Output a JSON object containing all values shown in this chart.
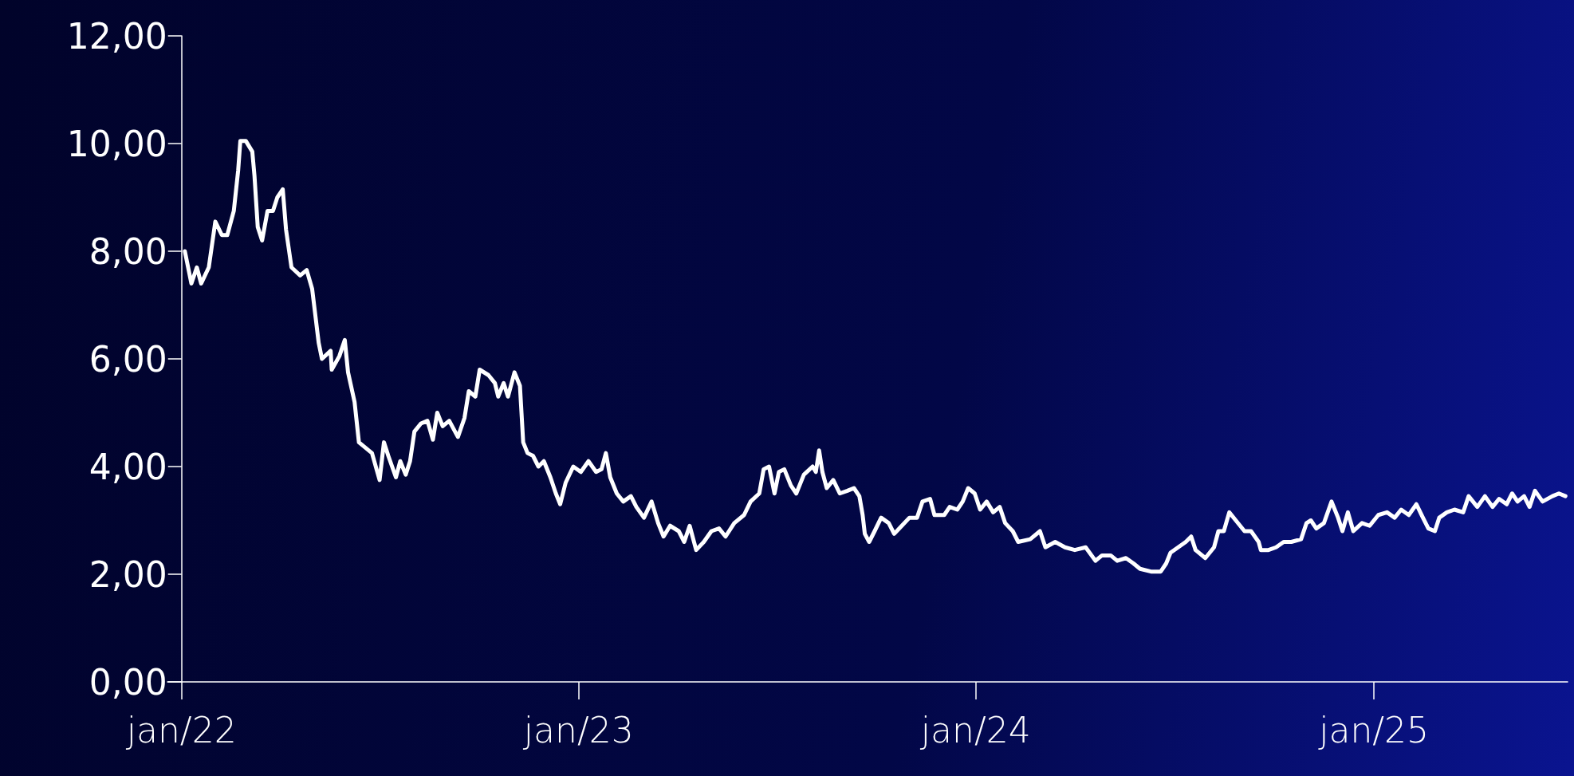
{
  "chart_data": {
    "type": "line",
    "x": [
      "2022-01-04",
      "2022-01-10",
      "2022-01-15",
      "2022-01-19",
      "2022-01-26",
      "2022-02-01",
      "2022-02-07",
      "2022-02-12",
      "2022-02-18",
      "2022-02-22",
      "2022-02-24",
      "2022-03-01",
      "2022-03-07",
      "2022-03-09",
      "2022-03-12",
      "2022-03-16",
      "2022-03-21",
      "2022-03-26",
      "2022-03-30",
      "2022-04-04",
      "2022-04-07",
      "2022-04-12",
      "2022-04-20",
      "2022-04-26",
      "2022-05-01",
      "2022-05-04",
      "2022-05-07",
      "2022-05-10",
      "2022-05-18",
      "2022-05-19",
      "2022-05-26",
      "2022-05-31",
      "2022-06-03",
      "2022-06-09",
      "2022-06-13",
      "2022-06-19",
      "2022-06-25",
      "2022-07-02",
      "2022-07-06",
      "2022-07-10",
      "2022-07-17",
      "2022-07-21",
      "2022-07-26",
      "2022-07-30",
      "2022-08-03",
      "2022-08-09",
      "2022-08-15",
      "2022-08-20",
      "2022-08-24",
      "2022-08-29",
      "2022-09-04",
      "2022-09-12",
      "2022-09-18",
      "2022-09-22",
      "2022-09-28",
      "2022-10-02",
      "2022-10-10",
      "2022-10-16",
      "2022-10-19",
      "2022-10-24",
      "2022-10-28",
      "2022-11-03",
      "2022-11-08",
      "2022-11-11",
      "2022-11-15",
      "2022-11-20",
      "2022-11-25",
      "2022-11-30",
      "2022-12-06",
      "2022-12-11",
      "2022-12-15",
      "2022-12-20",
      "2022-12-27",
      "2023-01-03",
      "2023-01-10",
      "2023-01-17",
      "2023-01-22",
      "2023-01-26",
      "2023-01-30",
      "2023-02-05",
      "2023-02-11",
      "2023-02-18",
      "2023-02-23",
      "2023-03-02",
      "2023-03-09",
      "2023-03-15",
      "2023-03-20",
      "2023-03-26",
      "2023-04-03",
      "2023-04-08",
      "2023-04-13",
      "2023-04-19",
      "2023-04-26",
      "2023-05-03",
      "2023-05-10",
      "2023-05-16",
      "2023-05-24",
      "2023-06-02",
      "2023-06-08",
      "2023-06-16",
      "2023-06-20",
      "2023-06-25",
      "2023-06-30",
      "2023-07-04",
      "2023-07-09",
      "2023-07-15",
      "2023-07-20",
      "2023-07-27",
      "2023-08-04",
      "2023-08-07",
      "2023-08-10",
      "2023-08-13",
      "2023-08-17",
      "2023-08-23",
      "2023-08-29",
      "2023-09-05",
      "2023-09-11",
      "2023-09-16",
      "2023-09-19",
      "2023-09-21",
      "2023-09-25",
      "2023-09-30",
      "2023-10-06",
      "2023-10-13",
      "2023-10-18",
      "2023-10-25",
      "2023-11-01",
      "2023-11-08",
      "2023-11-13",
      "2023-11-20",
      "2023-11-24",
      "2023-12-03",
      "2023-12-08",
      "2023-12-15",
      "2023-12-20",
      "2023-12-25",
      "2023-12-31",
      "2024-01-05",
      "2024-01-11",
      "2024-01-17",
      "2024-01-23",
      "2024-01-28",
      "2024-02-04",
      "2024-02-09",
      "2024-02-20",
      "2024-02-29",
      "2024-03-05",
      "2024-03-14",
      "2024-03-23",
      "2024-04-01",
      "2024-04-11",
      "2024-04-20",
      "2024-04-26",
      "2024-05-04",
      "2024-05-10",
      "2024-05-18",
      "2024-05-25",
      "2024-05-31",
      "2024-06-10",
      "2024-06-19",
      "2024-06-24",
      "2024-06-28",
      "2024-07-05",
      "2024-07-12",
      "2024-07-17",
      "2024-07-21",
      "2024-07-30",
      "2024-08-07",
      "2024-08-11",
      "2024-08-16",
      "2024-08-21",
      "2024-08-27",
      "2024-09-04",
      "2024-09-10",
      "2024-09-17",
      "2024-09-19",
      "2024-09-26",
      "2024-10-03",
      "2024-10-10",
      "2024-10-17",
      "2024-10-26",
      "2024-10-31",
      "2024-11-04",
      "2024-11-09",
      "2024-11-16",
      "2024-11-23",
      "2024-11-29",
      "2024-12-03",
      "2024-12-08",
      "2024-12-13",
      "2024-12-21",
      "2024-12-28",
      "2025-01-05",
      "2025-01-13",
      "2025-01-20",
      "2025-01-26",
      "2025-02-02",
      "2025-02-09",
      "2025-02-15",
      "2025-02-20",
      "2025-02-26",
      "2025-03-02",
      "2025-03-09",
      "2025-03-16",
      "2025-03-24",
      "2025-03-29",
      "2025-04-06",
      "2025-04-13",
      "2025-04-20",
      "2025-04-26",
      "2025-05-03",
      "2025-05-08",
      "2025-05-13",
      "2025-05-19",
      "2025-05-24",
      "2025-05-29",
      "2025-06-05",
      "2025-06-14",
      "2025-06-20",
      "2025-06-26"
    ],
    "series": [
      {
        "color": "#ffffff",
        "values": [
          8.0,
          7.4,
          7.7,
          7.4,
          7.7,
          8.55,
          8.3,
          8.3,
          8.75,
          9.5,
          10.05,
          10.05,
          9.85,
          9.4,
          8.45,
          8.2,
          8.75,
          8.75,
          9.0,
          9.15,
          8.4,
          7.7,
          7.55,
          7.65,
          7.3,
          6.8,
          6.3,
          6.0,
          6.15,
          5.8,
          6.05,
          6.35,
          5.75,
          5.2,
          4.45,
          4.35,
          4.25,
          3.75,
          4.45,
          4.2,
          3.8,
          4.1,
          3.85,
          4.1,
          4.65,
          4.8,
          4.85,
          4.5,
          5.0,
          4.75,
          4.85,
          4.55,
          4.9,
          5.4,
          5.3,
          5.8,
          5.7,
          5.55,
          5.3,
          5.55,
          5.3,
          5.75,
          5.5,
          4.45,
          4.25,
          4.2,
          4.0,
          4.1,
          3.8,
          3.5,
          3.3,
          3.7,
          4.0,
          3.9,
          4.1,
          3.9,
          3.95,
          4.25,
          3.8,
          3.5,
          3.35,
          3.45,
          3.25,
          3.05,
          3.35,
          2.95,
          2.7,
          2.9,
          2.8,
          2.6,
          2.9,
          2.45,
          2.6,
          2.8,
          2.85,
          2.7,
          2.95,
          3.1,
          3.35,
          3.5,
          3.95,
          4.0,
          3.5,
          3.9,
          3.95,
          3.65,
          3.5,
          3.85,
          4.0,
          3.9,
          4.3,
          3.9,
          3.6,
          3.75,
          3.5,
          3.55,
          3.6,
          3.45,
          3.1,
          2.75,
          2.6,
          2.8,
          3.05,
          2.95,
          2.75,
          2.9,
          3.05,
          3.05,
          3.35,
          3.4,
          3.1,
          3.1,
          3.25,
          3.2,
          3.35,
          3.6,
          3.5,
          3.2,
          3.35,
          3.15,
          3.25,
          2.95,
          2.8,
          2.6,
          2.65,
          2.8,
          2.5,
          2.6,
          2.5,
          2.45,
          2.5,
          2.25,
          2.35,
          2.35,
          2.25,
          2.3,
          2.2,
          2.1,
          2.05,
          2.05,
          2.2,
          2.4,
          2.5,
          2.6,
          2.7,
          2.45,
          2.3,
          2.5,
          2.8,
          2.8,
          3.15,
          3.0,
          2.8,
          2.8,
          2.6,
          2.45,
          2.45,
          2.5,
          2.6,
          2.6,
          2.65,
          2.95,
          3.0,
          2.85,
          2.95,
          3.35,
          3.05,
          2.8,
          3.15,
          2.8,
          2.95,
          2.9,
          3.1,
          3.15,
          3.05,
          3.2,
          3.1,
          3.3,
          3.05,
          2.85,
          2.8,
          3.05,
          3.15,
          3.2,
          3.15,
          3.45,
          3.25,
          3.45,
          3.25,
          3.4,
          3.3,
          3.5,
          3.35,
          3.45,
          3.25,
          3.55,
          3.35,
          3.45,
          3.5,
          3.45
        ]
      }
    ],
    "xlim": [
      "2021-12-19",
      "2025-06-28"
    ],
    "xticks": [
      {
        "value": "2022-01-01",
        "label": "jan/22"
      },
      {
        "value": "2023-01-01",
        "label": "jan/23"
      },
      {
        "value": "2024-01-01",
        "label": "jan/24"
      },
      {
        "value": "2025-01-01",
        "label": "jan/25"
      }
    ],
    "ylim": [
      0,
      12
    ],
    "yticks": [
      {
        "value": 0,
        "label": "0,00"
      },
      {
        "value": 2,
        "label": "2,00"
      },
      {
        "value": 4,
        "label": "4,00"
      },
      {
        "value": 6,
        "label": "6,00"
      },
      {
        "value": 8,
        "label": "8,00"
      },
      {
        "value": 10,
        "label": "10,00"
      },
      {
        "value": 12,
        "label": "12,00"
      }
    ],
    "grid": false,
    "marker": "none",
    "line_style": "solid"
  }
}
